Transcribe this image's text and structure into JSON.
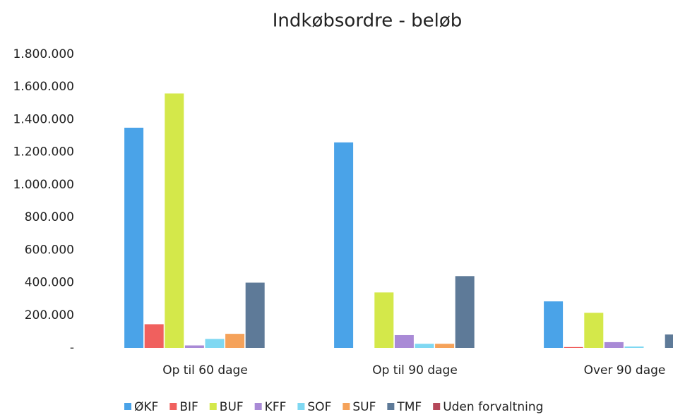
{
  "chart_data": {
    "type": "bar",
    "title": "Indkøbsordre - beløb",
    "categories": [
      "Op til 60 dage",
      "Op til 90 dage",
      "Over 90 dage"
    ],
    "series": [
      {
        "name": "ØKF",
        "color": "#4aa3e8",
        "values": [
          1350000,
          1260000,
          285000
        ]
      },
      {
        "name": "BIF",
        "color": "#f0605e",
        "values": [
          145000,
          0,
          5000
        ]
      },
      {
        "name": "BUF",
        "color": "#d4e84a",
        "values": [
          1560000,
          340000,
          215000
        ]
      },
      {
        "name": "KFF",
        "color": "#a98ad6",
        "values": [
          15000,
          78000,
          35000
        ]
      },
      {
        "name": "SOF",
        "color": "#7fd8f2",
        "values": [
          55000,
          25000,
          8000
        ]
      },
      {
        "name": "SUF",
        "color": "#f5a25a",
        "values": [
          86000,
          25000,
          0
        ]
      },
      {
        "name": "TMF",
        "color": "#5e7a98",
        "values": [
          400000,
          440000,
          82000
        ]
      },
      {
        "name": "Uden forvaltning",
        "color": "#b5485a",
        "values": [
          0,
          0,
          0
        ]
      }
    ],
    "ylim": [
      0,
      1800000
    ],
    "yticks": [
      {
        "value": 0,
        "label": "-"
      },
      {
        "value": 200000,
        "label": "200.000"
      },
      {
        "value": 400000,
        "label": "400.000"
      },
      {
        "value": 600000,
        "label": "600.000"
      },
      {
        "value": 800000,
        "label": "800.000"
      },
      {
        "value": 1000000,
        "label": "1.000.000"
      },
      {
        "value": 1200000,
        "label": "1.200.000"
      },
      {
        "value": 1400000,
        "label": "1.400.000"
      },
      {
        "value": 1600000,
        "label": "1.600.000"
      },
      {
        "value": 1800000,
        "label": "1.800.000"
      }
    ],
    "legend": "bottom",
    "grid": false
  }
}
